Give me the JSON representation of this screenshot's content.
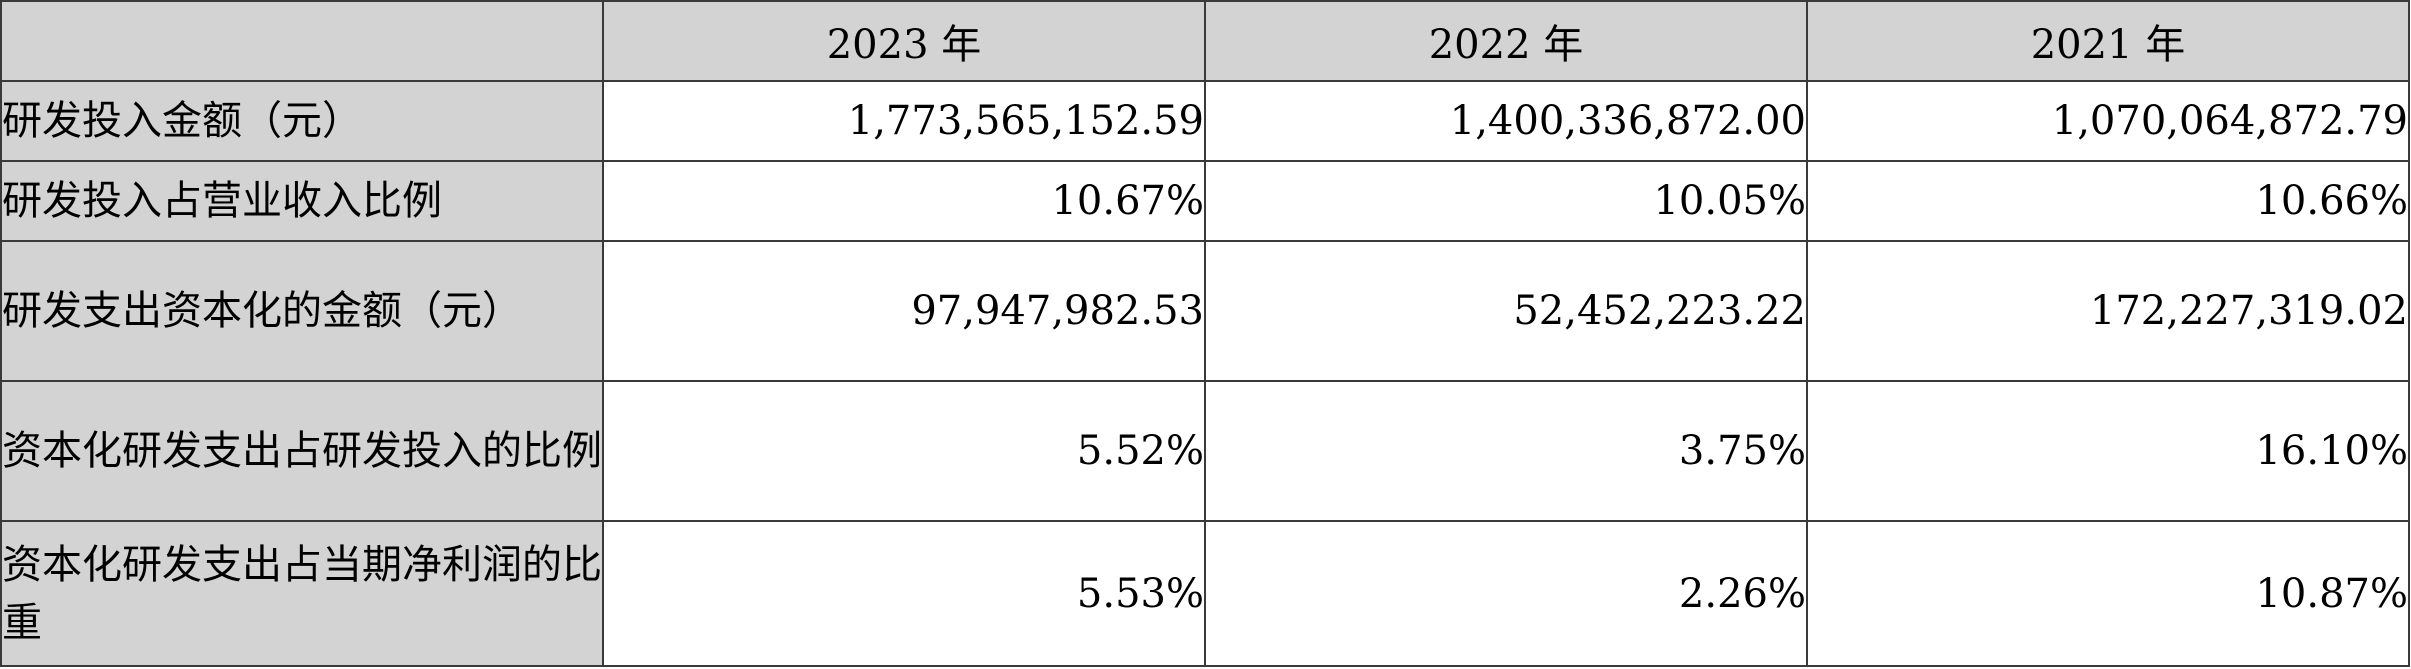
{
  "table": {
    "corner": "",
    "years": [
      "2023 年",
      "2022 年",
      "2021 年"
    ],
    "rows": [
      {
        "label": "研发投入金额（元）",
        "values": [
          "1,773,565,152.59",
          "1,400,336,872.00",
          "1,070,064,872.79"
        ]
      },
      {
        "label": "研发投入占营业收入比例",
        "values": [
          "10.67%",
          "10.05%",
          "10.66%"
        ]
      },
      {
        "label": "研发支出资本化的金额（元）",
        "values": [
          "97,947,982.53",
          "52,452,223.22",
          "172,227,319.02"
        ]
      },
      {
        "label": "资本化研发支出占研发投入的比例",
        "values": [
          "5.52%",
          "3.75%",
          "16.10%"
        ]
      },
      {
        "label": "资本化研发支出占当期净利润的比重",
        "values": [
          "5.53%",
          "2.26%",
          "10.87%"
        ]
      }
    ]
  }
}
